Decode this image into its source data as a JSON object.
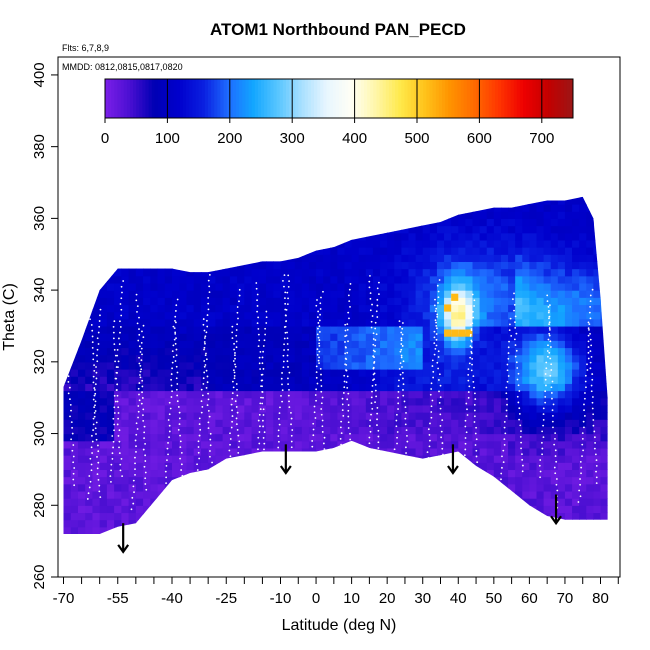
{
  "chart_data": {
    "type": "heatmap",
    "title": "ATOM1 Northbound PAN_PECD",
    "flights_note": "Flts: 6,7,8,9",
    "dates_note": "MMDD: 0812,0815,0817,0820",
    "xlabel": "Latitude (deg N)",
    "ylabel": "Theta (C)",
    "xlim": [
      -70,
      85
    ],
    "ylim": [
      260,
      405
    ],
    "x_tick_values": [
      -70,
      -55,
      -40,
      -25,
      -10,
      0,
      10,
      20,
      30,
      40,
      50,
      60,
      70,
      80
    ],
    "x_tick_labels": [
      "-70",
      "-55",
      "-40",
      "-25",
      "-10",
      "0",
      "10",
      "20",
      "30",
      "40",
      "50",
      "60",
      "70",
      "80"
    ],
    "x_minor_ticks": [
      -65,
      -60,
      -50,
      -45,
      -35,
      -30,
      -20,
      -15,
      -5,
      5,
      15,
      25,
      35,
      45,
      55,
      65,
      75,
      85
    ],
    "y_tick_values": [
      260,
      280,
      300,
      320,
      340,
      360,
      380,
      400
    ],
    "y_tick_labels": [
      "260",
      "280",
      "300",
      "320",
      "340",
      "360",
      "380",
      "400"
    ],
    "colorbar": {
      "range": [
        0,
        750
      ],
      "tick_values": [
        0,
        100,
        200,
        300,
        400,
        500,
        600,
        700
      ],
      "tick_labels": [
        "0",
        "100",
        "200",
        "300",
        "400",
        "500",
        "600",
        "700"
      ],
      "boundaries": [
        100,
        200,
        300,
        400,
        500,
        600,
        700
      ],
      "colors": [
        "#7b1fe8",
        "#4b0fd2",
        "#0000b4",
        "#0000cd",
        "#0a1fe0",
        "#1e6bff",
        "#12a5ff",
        "#57c5ff",
        "#a9e0ff",
        "#e8f6ff",
        "#fffff5",
        "#fff6a8",
        "#ffe94a",
        "#ffc21a",
        "#ff9300",
        "#ff6a00",
        "#ff3500",
        "#ee0000",
        "#c30000",
        "#9b1616"
      ]
    },
    "data_domain": {
      "latitudes": [
        -70,
        -65,
        -60,
        -55,
        -50,
        -45,
        -40,
        -35,
        -30,
        -25,
        -20,
        -15,
        -10,
        -5,
        0,
        5,
        10,
        15,
        20,
        25,
        30,
        35,
        40,
        45,
        50,
        55,
        60,
        65,
        70,
        75,
        78,
        80
      ],
      "theta_bottom": [
        272,
        272,
        272,
        274,
        275,
        281,
        287,
        289,
        290,
        293,
        294,
        295,
        295,
        295,
        295,
        296,
        298,
        296,
        295,
        294,
        293,
        294,
        295,
        291,
        288,
        284,
        280,
        277,
        276,
        276,
        276,
        276
      ],
      "theta_top": [
        313,
        326,
        340,
        346,
        346,
        346,
        346,
        345,
        345,
        346,
        347,
        348,
        348,
        349,
        351,
        352,
        354,
        355,
        356,
        357,
        358,
        359,
        361,
        362,
        363,
        363,
        364,
        365,
        365,
        366,
        360,
        338
      ]
    },
    "arrows": [
      {
        "latitude": -53.5,
        "theta": 275
      },
      {
        "latitude": -8.5,
        "theta": 297
      },
      {
        "latitude": 38.5,
        "theta": 297
      },
      {
        "latitude": 67.5,
        "theta": 283
      }
    ]
  }
}
